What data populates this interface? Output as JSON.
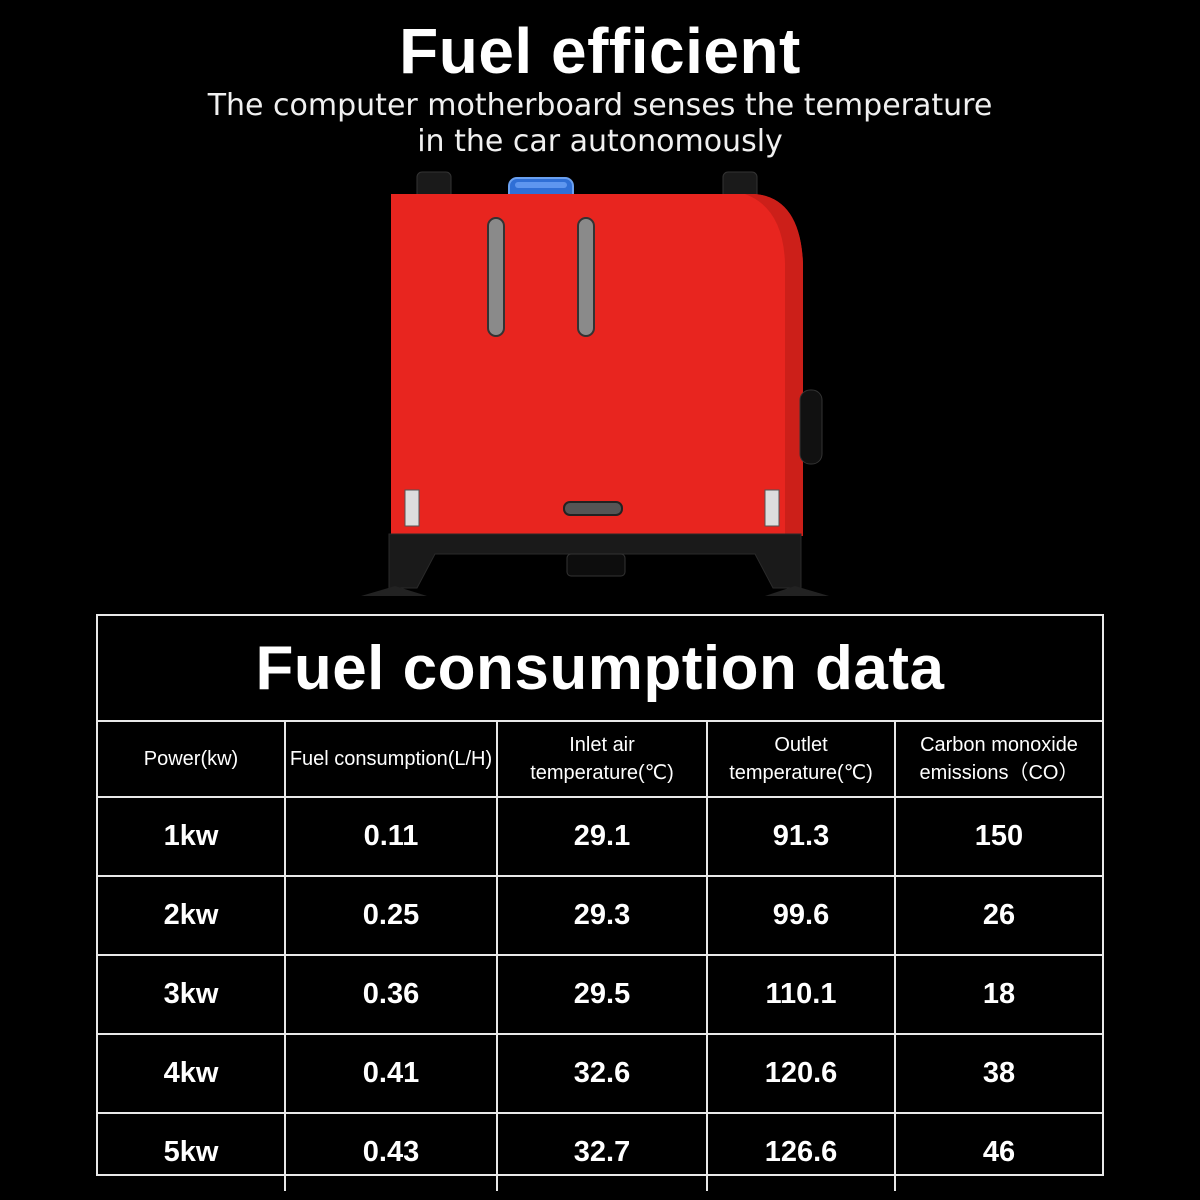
{
  "header": {
    "title": "Fuel efficient",
    "subtitle_line1": "The computer motherboard senses the temperature",
    "subtitle_line2": "in the car autonomously"
  },
  "product": {
    "body_color": "#e8251f",
    "cap_color": "#2f6fd6",
    "frame_color": "#1a1a1a"
  },
  "table": {
    "title": "Fuel consumption data",
    "headers": [
      "Power(kw)",
      "Fuel consumption(L/H)",
      "Inlet air temperature(℃)",
      "Outlet temperature(℃)",
      "Carbon monoxide emissions（CO）"
    ],
    "rows": [
      [
        "1kw",
        "0.11",
        "29.1",
        "91.3",
        "150"
      ],
      [
        "2kw",
        "0.25",
        "29.3",
        "99.6",
        "26"
      ],
      [
        "3kw",
        "0.36",
        "29.5",
        "110.1",
        "18"
      ],
      [
        "4kw",
        "0.41",
        "32.6",
        "120.6",
        "38"
      ],
      [
        "5kw",
        "0.43",
        "32.7",
        "126.6",
        "46"
      ]
    ]
  }
}
